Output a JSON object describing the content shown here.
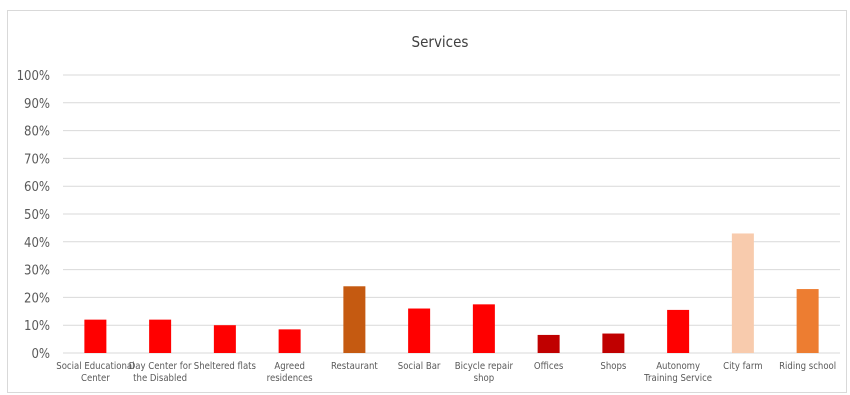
{
  "chart_data": {
    "type": "bar",
    "title": "Services",
    "xlabel": "",
    "ylabel": "",
    "ylim": [
      0,
      100
    ],
    "yticks": [
      "0%",
      "10%",
      "20%",
      "30%",
      "40%",
      "50%",
      "60%",
      "70%",
      "80%",
      "90%",
      "100%"
    ],
    "grid": true,
    "legend": "none",
    "categories": [
      "Social Educational Center",
      "Day Center for the Disabled",
      "Sheltered flats",
      "Agreed residences",
      "Restaurant",
      "Social Bar",
      "Bicycle repair shop",
      "Offices",
      "Shops",
      "Autonomy Training Service",
      "City farm",
      "Riding school"
    ],
    "category_lines": [
      [
        "Social Educational",
        "Center"
      ],
      [
        "Day Center for",
        "the Disabled"
      ],
      [
        "Sheltered flats"
      ],
      [
        "Agreed",
        "residences"
      ],
      [
        "Restaurant"
      ],
      [
        "Social Bar"
      ],
      [
        "Bicycle repair",
        "shop"
      ],
      [
        "Offices"
      ],
      [
        "Shops"
      ],
      [
        "Autonomy",
        "Training Service"
      ],
      [
        "City farm"
      ],
      [
        "Riding school"
      ]
    ],
    "values": [
      12,
      12,
      10,
      8.5,
      24,
      16,
      17.5,
      6.5,
      7,
      15.5,
      43,
      23
    ],
    "colors": [
      "#ff0000",
      "#ff0000",
      "#ff0000",
      "#ff0000",
      "#c55a11",
      "#ff0000",
      "#ff0000",
      "#c00000",
      "#c00000",
      "#ff0000",
      "#f8cbad",
      "#ed7d31"
    ]
  }
}
